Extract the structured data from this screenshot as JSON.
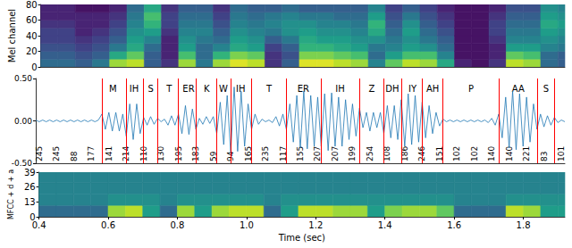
{
  "chart_data": [
    {
      "type": "heatmap",
      "ylabel": "Mel channel",
      "xlim": [
        0.4,
        1.92
      ],
      "ylim": [
        0,
        80
      ],
      "yticks": [
        0,
        20,
        40,
        60,
        80
      ],
      "tick_labels": "y",
      "x_edges": [
        0.4,
        0.45,
        0.5,
        0.55,
        0.6,
        0.65,
        0.7,
        0.75,
        0.8,
        0.85,
        0.9,
        0.95,
        1,
        1.05,
        1.1,
        1.15,
        1.2,
        1.25,
        1.3,
        1.35,
        1.4,
        1.45,
        1.5,
        1.55,
        1.6,
        1.65,
        1.7,
        1.75,
        1.8,
        1.85,
        1.9,
        1.92
      ],
      "y_edges": [
        0,
        10,
        20,
        30,
        40,
        50,
        60,
        70,
        80
      ],
      "cell_range": [
        0,
        1
      ],
      "cells": [
        [
          0.35,
          0.3,
          0.25,
          0.2,
          0.2,
          0.15,
          0.1,
          0.1
        ],
        [
          0.35,
          0.3,
          0.25,
          0.2,
          0.2,
          0.15,
          0.1,
          0.1
        ],
        [
          0.3,
          0.25,
          0.2,
          0.15,
          0.1,
          0.1,
          0.1,
          0.05
        ],
        [
          0.4,
          0.3,
          0.25,
          0.2,
          0.15,
          0.1,
          0.1,
          0.05
        ],
        [
          0.85,
          0.6,
          0.4,
          0.3,
          0.25,
          0.2,
          0.15,
          0.1
        ],
        [
          0.9,
          0.75,
          0.6,
          0.55,
          0.5,
          0.45,
          0.4,
          0.35
        ],
        [
          0.3,
          0.3,
          0.35,
          0.45,
          0.55,
          0.65,
          0.7,
          0.6
        ],
        [
          0.15,
          0.1,
          0.1,
          0.1,
          0.15,
          0.2,
          0.2,
          0.15
        ],
        [
          0.85,
          0.7,
          0.55,
          0.5,
          0.45,
          0.4,
          0.35,
          0.3
        ],
        [
          0.4,
          0.35,
          0.35,
          0.4,
          0.45,
          0.4,
          0.35,
          0.3
        ],
        [
          0.85,
          0.65,
          0.45,
          0.35,
          0.3,
          0.25,
          0.2,
          0.15
        ],
        [
          0.95,
          0.8,
          0.6,
          0.55,
          0.5,
          0.45,
          0.4,
          0.35
        ],
        [
          0.9,
          0.75,
          0.55,
          0.5,
          0.45,
          0.4,
          0.35,
          0.3
        ],
        [
          0.15,
          0.15,
          0.2,
          0.3,
          0.4,
          0.45,
          0.4,
          0.3
        ],
        [
          0.3,
          0.25,
          0.3,
          0.4,
          0.5,
          0.5,
          0.45,
          0.35
        ],
        [
          0.95,
          0.8,
          0.65,
          0.6,
          0.55,
          0.5,
          0.4,
          0.3
        ],
        [
          0.95,
          0.8,
          0.65,
          0.55,
          0.5,
          0.45,
          0.4,
          0.3
        ],
        [
          0.9,
          0.75,
          0.6,
          0.55,
          0.5,
          0.45,
          0.35,
          0.3
        ],
        [
          0.85,
          0.7,
          0.55,
          0.5,
          0.45,
          0.4,
          0.35,
          0.3
        ],
        [
          0.45,
          0.35,
          0.4,
          0.5,
          0.6,
          0.65,
          0.55,
          0.45
        ],
        [
          0.75,
          0.55,
          0.45,
          0.4,
          0.35,
          0.3,
          0.25,
          0.2
        ],
        [
          0.9,
          0.7,
          0.55,
          0.5,
          0.55,
          0.5,
          0.4,
          0.3
        ],
        [
          0.85,
          0.7,
          0.5,
          0.4,
          0.35,
          0.3,
          0.25,
          0.2
        ],
        [
          0.6,
          0.45,
          0.35,
          0.3,
          0.25,
          0.2,
          0.15,
          0.1
        ],
        [
          0.1,
          0.05,
          0.05,
          0.05,
          0.05,
          0.05,
          0.05,
          0.05
        ],
        [
          0.05,
          0.05,
          0.05,
          0.05,
          0.05,
          0.05,
          0.05,
          0.05
        ],
        [
          0.15,
          0.1,
          0.1,
          0.15,
          0.2,
          0.2,
          0.15,
          0.1
        ],
        [
          0.9,
          0.75,
          0.55,
          0.45,
          0.4,
          0.35,
          0.3,
          0.25
        ],
        [
          0.85,
          0.7,
          0.55,
          0.45,
          0.4,
          0.35,
          0.3,
          0.25
        ],
        [
          0.35,
          0.35,
          0.45,
          0.5,
          0.55,
          0.6,
          0.55,
          0.5
        ],
        [
          0.3,
          0.3,
          0.4,
          0.45,
          0.5,
          0.55,
          0.5,
          0.45
        ]
      ]
    },
    {
      "type": "line",
      "xlim": [
        0.4,
        1.92
      ],
      "ylim": [
        -0.5,
        0.5
      ],
      "yticks": [
        {
          "value": -0.5,
          "label": "-0.50"
        },
        {
          "value": 0,
          "label": "0.00"
        },
        {
          "value": 0.5,
          "label": "0.50"
        }
      ],
      "tick_labels": "y",
      "color": "#1f77b4",
      "x": [
        0.4,
        0.41,
        0.42,
        0.43,
        0.44,
        0.45,
        0.46,
        0.47,
        0.48,
        0.49,
        0.5,
        0.51,
        0.52,
        0.53,
        0.54,
        0.55,
        0.56,
        0.57,
        0.58,
        0.59,
        0.6,
        0.61,
        0.62,
        0.63,
        0.64,
        0.65,
        0.66,
        0.67,
        0.68,
        0.69,
        0.7,
        0.71,
        0.72,
        0.73,
        0.74,
        0.75,
        0.76,
        0.77,
        0.78,
        0.79,
        0.8,
        0.81,
        0.82,
        0.83,
        0.84,
        0.85,
        0.86,
        0.87,
        0.88,
        0.89,
        0.9,
        0.91,
        0.92,
        0.93,
        0.94,
        0.95,
        0.96,
        0.97,
        0.98,
        0.99,
        1,
        1.01,
        1.02,
        1.03,
        1.04,
        1.05,
        1.06,
        1.07,
        1.08,
        1.09,
        1.1,
        1.11,
        1.12,
        1.13,
        1.14,
        1.15,
        1.16,
        1.17,
        1.18,
        1.19,
        1.2,
        1.21,
        1.22,
        1.23,
        1.24,
        1.25,
        1.26,
        1.27,
        1.28,
        1.29,
        1.3,
        1.31,
        1.32,
        1.33,
        1.34,
        1.35,
        1.36,
        1.37,
        1.38,
        1.39,
        1.4,
        1.41,
        1.42,
        1.43,
        1.44,
        1.45,
        1.46,
        1.47,
        1.48,
        1.49,
        1.5,
        1.51,
        1.52,
        1.53,
        1.54,
        1.55,
        1.56,
        1.57,
        1.58,
        1.59,
        1.6,
        1.61,
        1.62,
        1.63,
        1.64,
        1.65,
        1.66,
        1.67,
        1.68,
        1.69,
        1.7,
        1.71,
        1.72,
        1.73,
        1.74,
        1.75,
        1.76,
        1.77,
        1.78,
        1.79,
        1.8,
        1.81,
        1.82,
        1.83,
        1.84,
        1.85,
        1.86,
        1.87,
        1.88,
        1.89,
        1.9,
        1.91,
        1.92
      ],
      "values": [
        0.01,
        -0.01,
        0.01,
        -0.01,
        0.01,
        -0.01,
        0.01,
        -0.01,
        0.01,
        -0.01,
        0.01,
        -0.01,
        0.01,
        -0.01,
        0.01,
        -0.01,
        0.01,
        -0.01,
        0.01,
        0.08,
        -0.1,
        0.1,
        -0.12,
        0.1,
        -0.12,
        0.08,
        -0.18,
        0.2,
        -0.22,
        0.2,
        -0.15,
        0.04,
        -0.05,
        0.05,
        -0.04,
        0.03,
        -0.01,
        0.02,
        -0.05,
        0.06,
        -0.05,
        0.08,
        -0.15,
        0.18,
        -0.16,
        0.14,
        -0.1,
        0.03,
        -0.04,
        0.05,
        -0.03,
        0.05,
        -0.15,
        0.22,
        -0.28,
        0.3,
        -0.38,
        0.4,
        -0.36,
        0.35,
        -0.3,
        0.2,
        -0.1,
        0.08,
        -0.04,
        0.02,
        -0.01,
        0.01,
        -0.02,
        0.05,
        -0.06,
        0.08,
        -0.1,
        0.2,
        -0.25,
        0.3,
        -0.32,
        0.35,
        -0.33,
        0.3,
        -0.3,
        0.28,
        -0.3,
        0.32,
        -0.35,
        0.33,
        -0.3,
        0.28,
        -0.3,
        0.25,
        -0.22,
        0.2,
        -0.18,
        0.15,
        -0.08,
        0.1,
        -0.12,
        0.1,
        -0.08,
        0.1,
        -0.15,
        0.18,
        -0.2,
        0.18,
        -0.22,
        0.25,
        -0.3,
        0.32,
        -0.28,
        0.3,
        -0.25,
        0.22,
        -0.2,
        0.18,
        -0.15,
        0.1,
        -0.06,
        0.02,
        -0.01,
        0.01,
        -0.01,
        0.01,
        -0.01,
        0.01,
        -0.01,
        0.01,
        -0.01,
        0.01,
        -0.01,
        0.01,
        -0.02,
        0.03,
        -0.05,
        0.08,
        -0.2,
        0.28,
        -0.32,
        0.35,
        -0.34,
        0.32,
        -0.3,
        0.28,
        -0.25,
        0.2,
        -0.1,
        0.08,
        -0.07,
        0.06,
        -0.05,
        0.04,
        -0.02,
        0.01,
        -0.01
      ],
      "phonemes": [
        "M",
        "IH",
        "S",
        "T",
        "ER",
        "K",
        "W",
        "IH",
        "T",
        "ER",
        "IH",
        "Z",
        "DH",
        "IY",
        "AH",
        "P",
        "AA",
        "S"
      ],
      "phoneme_boundaries": [
        0.587,
        0.656,
        0.709,
        0.752,
        0.815,
        0.863,
        0.919,
        0.959,
        1.018,
        1.122,
        1.215,
        1.334,
        1.397,
        1.451,
        1.514,
        1.567,
        1.734,
        1.838,
        1.894
      ],
      "frame_labels": {
        "x": [
          0.41,
          0.46,
          0.51,
          0.56,
          0.61,
          0.66,
          0.71,
          0.76,
          0.81,
          0.86,
          0.91,
          0.96,
          1.01,
          1.06,
          1.11,
          1.16,
          1.21,
          1.26,
          1.31,
          1.36,
          1.41,
          1.46,
          1.51,
          1.56,
          1.61,
          1.66,
          1.71,
          1.76,
          1.81,
          1.86,
          1.91
        ],
        "values": [
          245,
          245,
          88,
          177,
          141,
          214,
          110,
          130,
          195,
          183,
          59,
          94,
          165,
          235,
          117,
          155,
          207,
          207,
          199,
          254,
          108,
          186,
          246,
          151,
          102,
          102,
          140,
          140,
          221,
          83,
          101
        ]
      }
    },
    {
      "type": "heatmap",
      "xlabel": "Time (sec)",
      "ylabel": "MFCC + d + a",
      "xlim": [
        0.4,
        1.92
      ],
      "xticks": [
        0.4,
        0.6,
        0.8,
        {
          "value": 1,
          "label": "1.0"
        },
        1.2,
        1.4,
        1.6,
        1.8
      ],
      "ylim": [
        0,
        39
      ],
      "yticks": [
        0,
        13,
        26,
        39
      ],
      "x_edges": [
        0.4,
        0.45,
        0.5,
        0.55,
        0.6,
        0.65,
        0.7,
        0.75,
        0.8,
        0.85,
        0.9,
        0.95,
        1,
        1.05,
        1.1,
        1.15,
        1.2,
        1.25,
        1.3,
        1.35,
        1.4,
        1.45,
        1.5,
        1.55,
        1.6,
        1.65,
        1.7,
        1.75,
        1.8,
        1.85,
        1.9,
        1.92
      ],
      "y_edges": [
        0,
        10,
        20,
        30,
        39
      ],
      "cell_range": [
        0,
        1
      ],
      "cells": [
        [
          0.35,
          0.45,
          0.45,
          0.45
        ],
        [
          0.35,
          0.45,
          0.45,
          0.45
        ],
        [
          0.35,
          0.45,
          0.45,
          0.45
        ],
        [
          0.35,
          0.45,
          0.45,
          0.45
        ],
        [
          0.85,
          0.5,
          0.45,
          0.45
        ],
        [
          0.9,
          0.5,
          0.45,
          0.45
        ],
        [
          0.55,
          0.5,
          0.45,
          0.45
        ],
        [
          0.35,
          0.45,
          0.45,
          0.45
        ],
        [
          0.85,
          0.5,
          0.45,
          0.45
        ],
        [
          0.55,
          0.5,
          0.45,
          0.45
        ],
        [
          0.85,
          0.5,
          0.45,
          0.45
        ],
        [
          0.9,
          0.5,
          0.45,
          0.45
        ],
        [
          0.9,
          0.5,
          0.45,
          0.45
        ],
        [
          0.35,
          0.45,
          0.45,
          0.45
        ],
        [
          0.55,
          0.5,
          0.45,
          0.45
        ],
        [
          0.9,
          0.5,
          0.45,
          0.45
        ],
        [
          0.9,
          0.5,
          0.45,
          0.45
        ],
        [
          0.85,
          0.5,
          0.45,
          0.45
        ],
        [
          0.85,
          0.5,
          0.45,
          0.45
        ],
        [
          0.55,
          0.5,
          0.45,
          0.45
        ],
        [
          0.8,
          0.5,
          0.45,
          0.45
        ],
        [
          0.85,
          0.5,
          0.45,
          0.45
        ],
        [
          0.85,
          0.5,
          0.45,
          0.45
        ],
        [
          0.75,
          0.5,
          0.45,
          0.45
        ],
        [
          0.35,
          0.45,
          0.45,
          0.45
        ],
        [
          0.35,
          0.45,
          0.45,
          0.45
        ],
        [
          0.35,
          0.45,
          0.45,
          0.45
        ],
        [
          0.9,
          0.5,
          0.45,
          0.45
        ],
        [
          0.85,
          0.5,
          0.45,
          0.45
        ],
        [
          0.55,
          0.5,
          0.45,
          0.45
        ],
        [
          0.55,
          0.5,
          0.45,
          0.45
        ]
      ]
    }
  ]
}
